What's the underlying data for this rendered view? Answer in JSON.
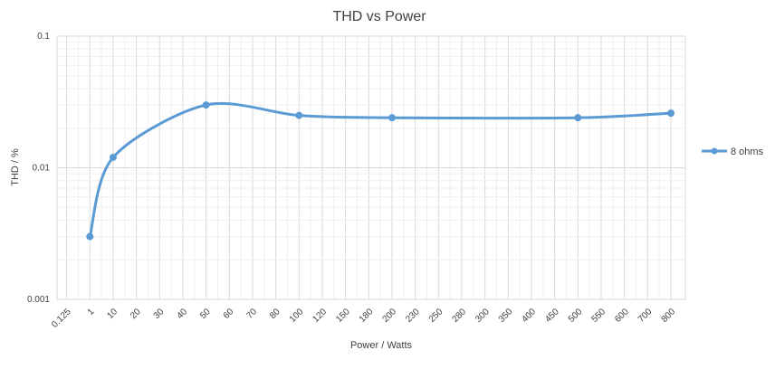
{
  "chart_data": {
    "type": "line",
    "title": "THD vs Power",
    "xlabel": "Power / Watts",
    "ylabel": "THD / %",
    "y_scale": "log",
    "ylim": [
      0.001,
      0.1
    ],
    "y_ticks": [
      "0.001",
      "0.01",
      "0.1"
    ],
    "x_categories": [
      "0.125",
      "1",
      "10",
      "20",
      "30",
      "40",
      "50",
      "60",
      "70",
      "80",
      "100",
      "120",
      "150",
      "180",
      "200",
      "230",
      "250",
      "280",
      "300",
      "350",
      "400",
      "450",
      "500",
      "550",
      "600",
      "700",
      "800"
    ],
    "grid": true,
    "legend_position": "right",
    "series": [
      {
        "name": "8 ohms",
        "color": "#5b9bd5",
        "points": [
          {
            "x": "1",
            "y": 0.003
          },
          {
            "x": "10",
            "y": 0.012
          },
          {
            "x": "50",
            "y": 0.03
          },
          {
            "x": "100",
            "y": 0.025
          },
          {
            "x": "200",
            "y": 0.024
          },
          {
            "x": "500",
            "y": 0.024
          },
          {
            "x": "800",
            "y": 0.026
          }
        ]
      }
    ]
  }
}
